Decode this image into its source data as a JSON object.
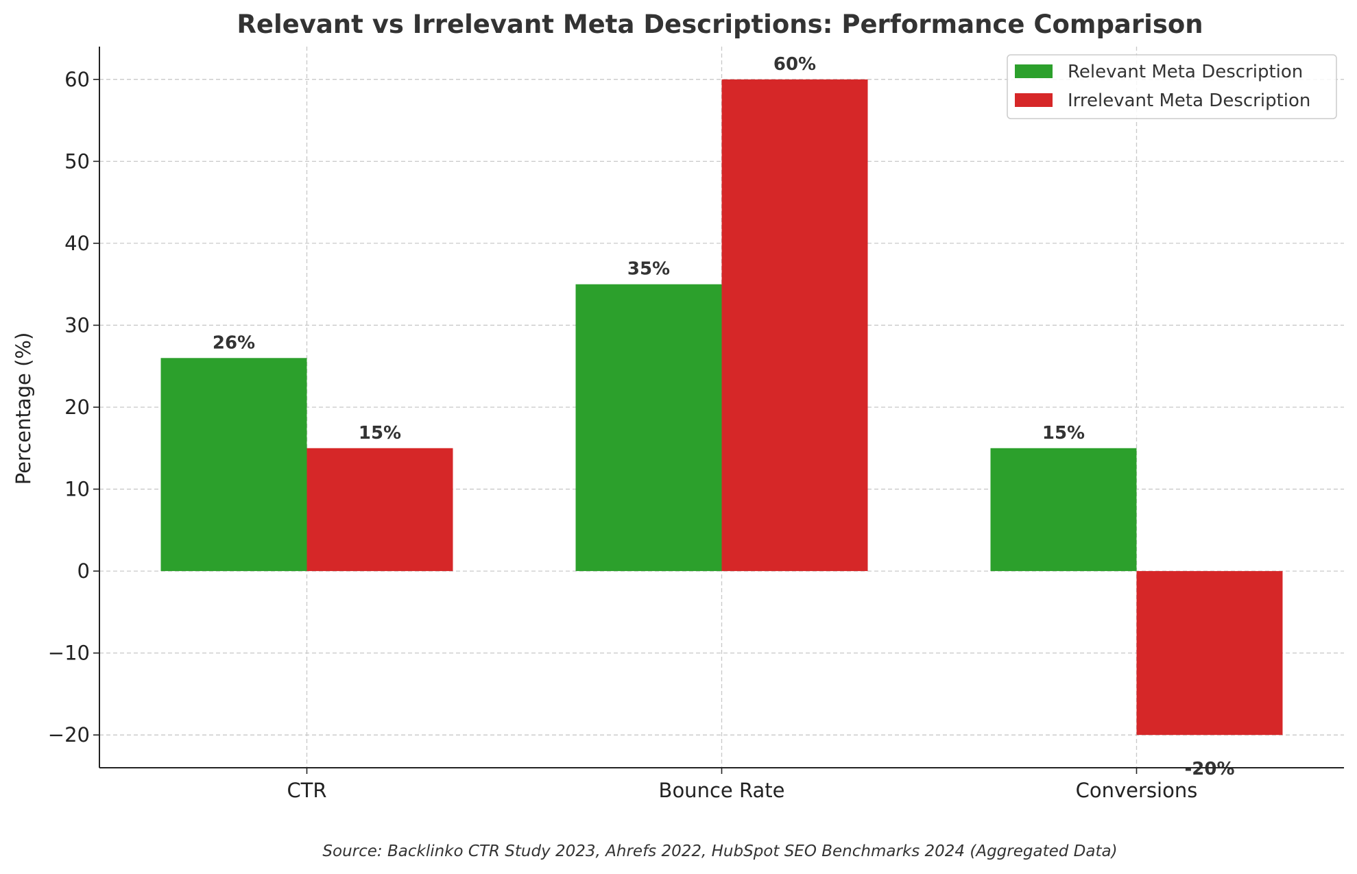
{
  "chart_data": {
    "type": "bar",
    "title": "Relevant vs Irrelevant Meta Descriptions: Performance Comparison",
    "ylabel": "Percentage (%)",
    "xlabel": "",
    "categories": [
      "CTR",
      "Bounce Rate",
      "Conversions"
    ],
    "series": [
      {
        "name": "Relevant Meta Description",
        "color": "#2ca02c",
        "values": [
          26,
          35,
          15
        ],
        "labels": [
          "26%",
          "35%",
          "15%"
        ]
      },
      {
        "name": "Irrelevant Meta Description",
        "color": "#d62728",
        "values": [
          15,
          60,
          -20
        ],
        "labels": [
          "15%",
          "60%",
          "-20%"
        ]
      }
    ],
    "ylim": [
      -24,
      64
    ],
    "yticks": [
      -20,
      -10,
      0,
      10,
      20,
      30,
      40,
      50,
      60
    ],
    "ytick_labels": [
      "−20",
      "−10",
      "0",
      "10",
      "20",
      "30",
      "40",
      "50",
      "60"
    ],
    "grid": true,
    "legend_position": "top-right",
    "source_note": "Source: Backlinko CTR Study 2023, Ahrefs 2022, HubSpot SEO Benchmarks 2024 (Aggregated Data)"
  }
}
